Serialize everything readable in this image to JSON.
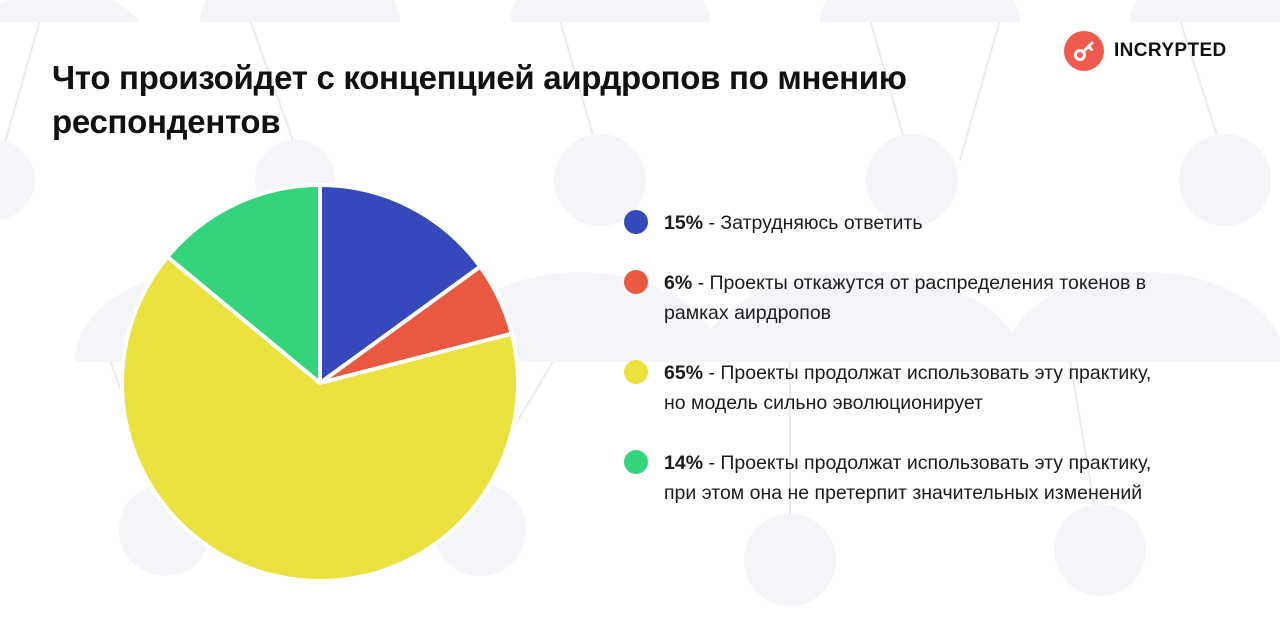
{
  "title": "Что произойдет с концепцией аирдропов по мнению респондентов",
  "brand": {
    "name": "INCRYPTED",
    "icon": "key-icon",
    "color": "#ee5a4b"
  },
  "chart_data": {
    "type": "pie",
    "title": "Что произойдет с концепцией аирдропов по мнению респондентов",
    "unit": "%",
    "start_angle_deg": 0,
    "direction": "clockwise",
    "legend_position": "right",
    "slices": [
      {
        "value": 15,
        "label": "15%",
        "description": "Затрудняюсь ответить",
        "color": "#3548bc"
      },
      {
        "value": 6,
        "label": "6%",
        "description": "Проекты откажутся от распределения токенов в рамках аирдропов",
        "color": "#ea5840"
      },
      {
        "value": 65,
        "label": "65%",
        "description": "Проекты продолжат использовать эту практику, но модель сильно эволюционирует",
        "color": "#ebe13f"
      },
      {
        "value": 14,
        "label": "14%",
        "description": "Проекты продолжат использовать эту практику, при этом она не претерпит значительных изменений",
        "color": "#34d57a"
      }
    ]
  }
}
